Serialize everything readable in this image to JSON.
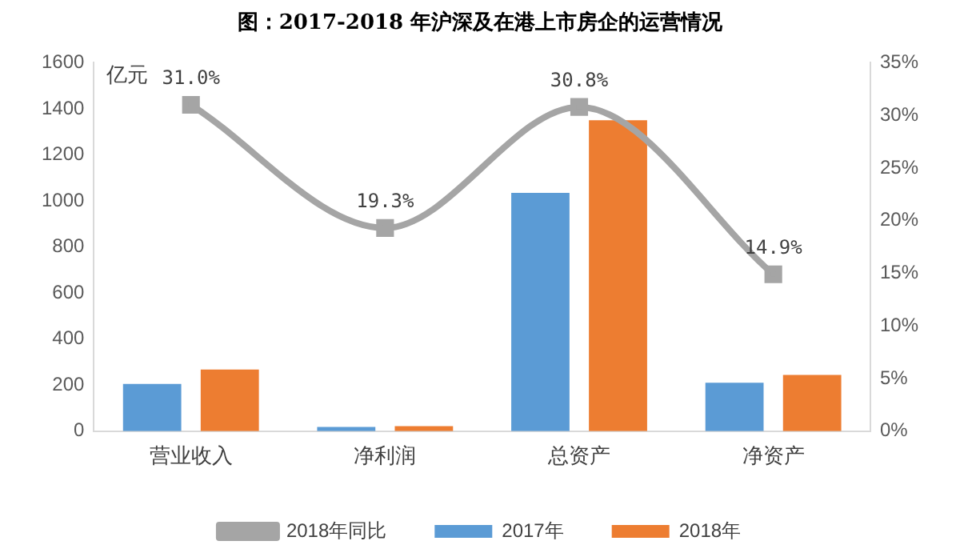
{
  "chart_data": {
    "type": "bar",
    "title": "图：2017-2018 年沪深及在港上市房企的运营情况",
    "annotations": [
      "亿元"
    ],
    "categories": [
      "营业收入",
      "净利润",
      "总资产",
      "净资产"
    ],
    "series": [
      {
        "name": "2017年",
        "color": "#5b9bd5",
        "values": [
          205,
          18,
          1035,
          210
        ]
      },
      {
        "name": "2018年",
        "color": "#ed7d31",
        "values": [
          268,
          22,
          1350,
          244
        ]
      },
      {
        "name": "2018年同比",
        "type": "line",
        "axis": "y2",
        "color": "#a5a5a5",
        "values": [
          31.0,
          19.3,
          30.8,
          14.9
        ],
        "value_labels": [
          "31.0%",
          "19.3%",
          "30.8%",
          "14.9%"
        ]
      }
    ],
    "ylim": [
      0,
      1600
    ],
    "yticks": [
      0,
      200,
      400,
      600,
      800,
      1000,
      1200,
      1400,
      1600
    ],
    "y2lim": [
      0,
      35
    ],
    "y2ticks": [
      {
        "value": 0,
        "label": "0%"
      },
      {
        "value": 5,
        "label": "5%"
      },
      {
        "value": 10,
        "label": "10%"
      },
      {
        "value": 15,
        "label": "15%"
      },
      {
        "value": 20,
        "label": "20%"
      },
      {
        "value": 25,
        "label": "25%"
      },
      {
        "value": 30,
        "label": "30%"
      },
      {
        "value": 35,
        "label": "35%"
      }
    ],
    "grid": false,
    "legend": "bottom",
    "marker": "square",
    "line_style": "solid"
  }
}
